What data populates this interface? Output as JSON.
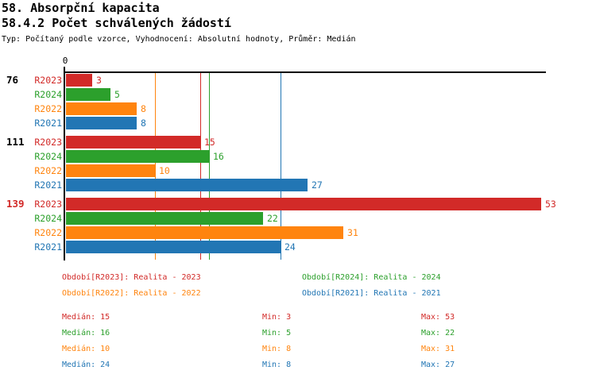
{
  "header": {
    "title": "58. Absorpční kapacita",
    "subtitle": "58.4.2 Počet schválených žádostí",
    "meta": "Typ: Počítaný podle vzorce, Vyhodnocení: Absolutní hodnoty, Průměr: Medián"
  },
  "colors": {
    "R2023": "#d22a28",
    "R2024": "#2ca02c",
    "R2022": "#ff840e",
    "R2021": "#2276b4",
    "axis": "#000000",
    "group_label_default": "#000000",
    "group_label_highlight": "#d22a28"
  },
  "chart_data": {
    "type": "bar",
    "orientation": "horizontal",
    "x_axis": {
      "origin_label": "0",
      "min": 0,
      "max": 53.6,
      "grid": "per-series-median-lines"
    },
    "series_order": [
      "R2023",
      "R2024",
      "R2022",
      "R2021"
    ],
    "groups": [
      {
        "label": "76",
        "highlight": false,
        "bars": [
          {
            "series": "R2023",
            "value": 3
          },
          {
            "series": "R2024",
            "value": 5
          },
          {
            "series": "R2022",
            "value": 8
          },
          {
            "series": "R2021",
            "value": 8
          }
        ]
      },
      {
        "label": "111",
        "highlight": false,
        "bars": [
          {
            "series": "R2023",
            "value": 15
          },
          {
            "series": "R2024",
            "value": 16
          },
          {
            "series": "R2022",
            "value": 10
          },
          {
            "series": "R2021",
            "value": 27
          }
        ]
      },
      {
        "label": "139",
        "highlight": true,
        "bars": [
          {
            "series": "R2023",
            "value": 53
          },
          {
            "series": "R2024",
            "value": 22
          },
          {
            "series": "R2022",
            "value": 31
          },
          {
            "series": "R2021",
            "value": 24
          }
        ]
      }
    ],
    "median_lines": [
      {
        "series": "R2022",
        "value": 10
      },
      {
        "series": "R2023",
        "value": 15
      },
      {
        "series": "R2024",
        "value": 16
      },
      {
        "series": "R2021",
        "value": 24
      }
    ]
  },
  "legend": {
    "rows": [
      [
        {
          "series": "R2023",
          "label": "Období[R2023]: Realita - 2023"
        },
        {
          "series": "R2024",
          "label": "Období[R2024]: Realita - 2024"
        }
      ],
      [
        {
          "series": "R2022",
          "label": "Období[R2022]: Realita - 2022"
        },
        {
          "series": "R2021",
          "label": "Období[R2021]: Realita - 2021"
        }
      ]
    ]
  },
  "stats": {
    "labels": {
      "median": "Medián",
      "min": "Min",
      "max": "Max"
    },
    "rows": [
      {
        "series": "R2023",
        "median": 15,
        "min": 3,
        "max": 53
      },
      {
        "series": "R2024",
        "median": 16,
        "min": 5,
        "max": 22
      },
      {
        "series": "R2022",
        "median": 10,
        "min": 8,
        "max": 31
      },
      {
        "series": "R2021",
        "median": 24,
        "min": 8,
        "max": 27
      }
    ]
  }
}
